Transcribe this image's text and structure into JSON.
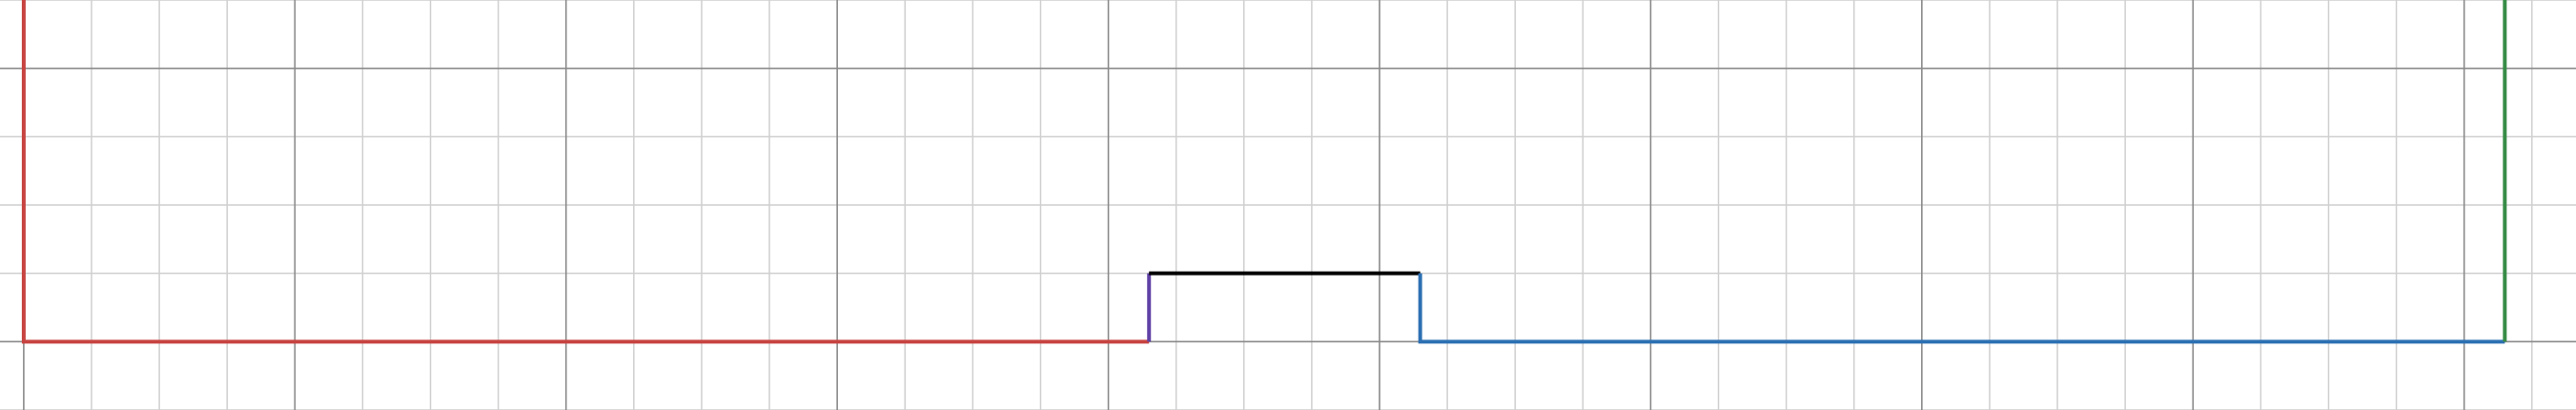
{
  "graph": {
    "grid": {
      "visible": true,
      "minor_step": 1,
      "major_every": 4,
      "x_range": [
        -0.35,
        37.65
      ],
      "y_range": [
        -1.0,
        5.0
      ]
    },
    "segments": [
      {
        "name": "red-segment",
        "color": "#c74440",
        "points": [
          [
            0,
            5
          ],
          [
            0,
            0
          ],
          [
            16.6,
            0
          ]
        ]
      },
      {
        "name": "purple-segment",
        "color": "#6042a6",
        "points": [
          [
            16.6,
            0
          ],
          [
            16.6,
            1
          ]
        ]
      },
      {
        "name": "black-segment",
        "color": "#000000",
        "points": [
          [
            16.6,
            1
          ],
          [
            20.6,
            1
          ]
        ]
      },
      {
        "name": "blue-segment",
        "color": "#2d70b3",
        "points": [
          [
            20.6,
            1
          ],
          [
            20.6,
            0
          ],
          [
            36.6,
            0
          ]
        ]
      },
      {
        "name": "green-segment",
        "color": "#388c46",
        "points": [
          [
            36.6,
            0
          ],
          [
            36.6,
            5
          ]
        ]
      }
    ]
  }
}
